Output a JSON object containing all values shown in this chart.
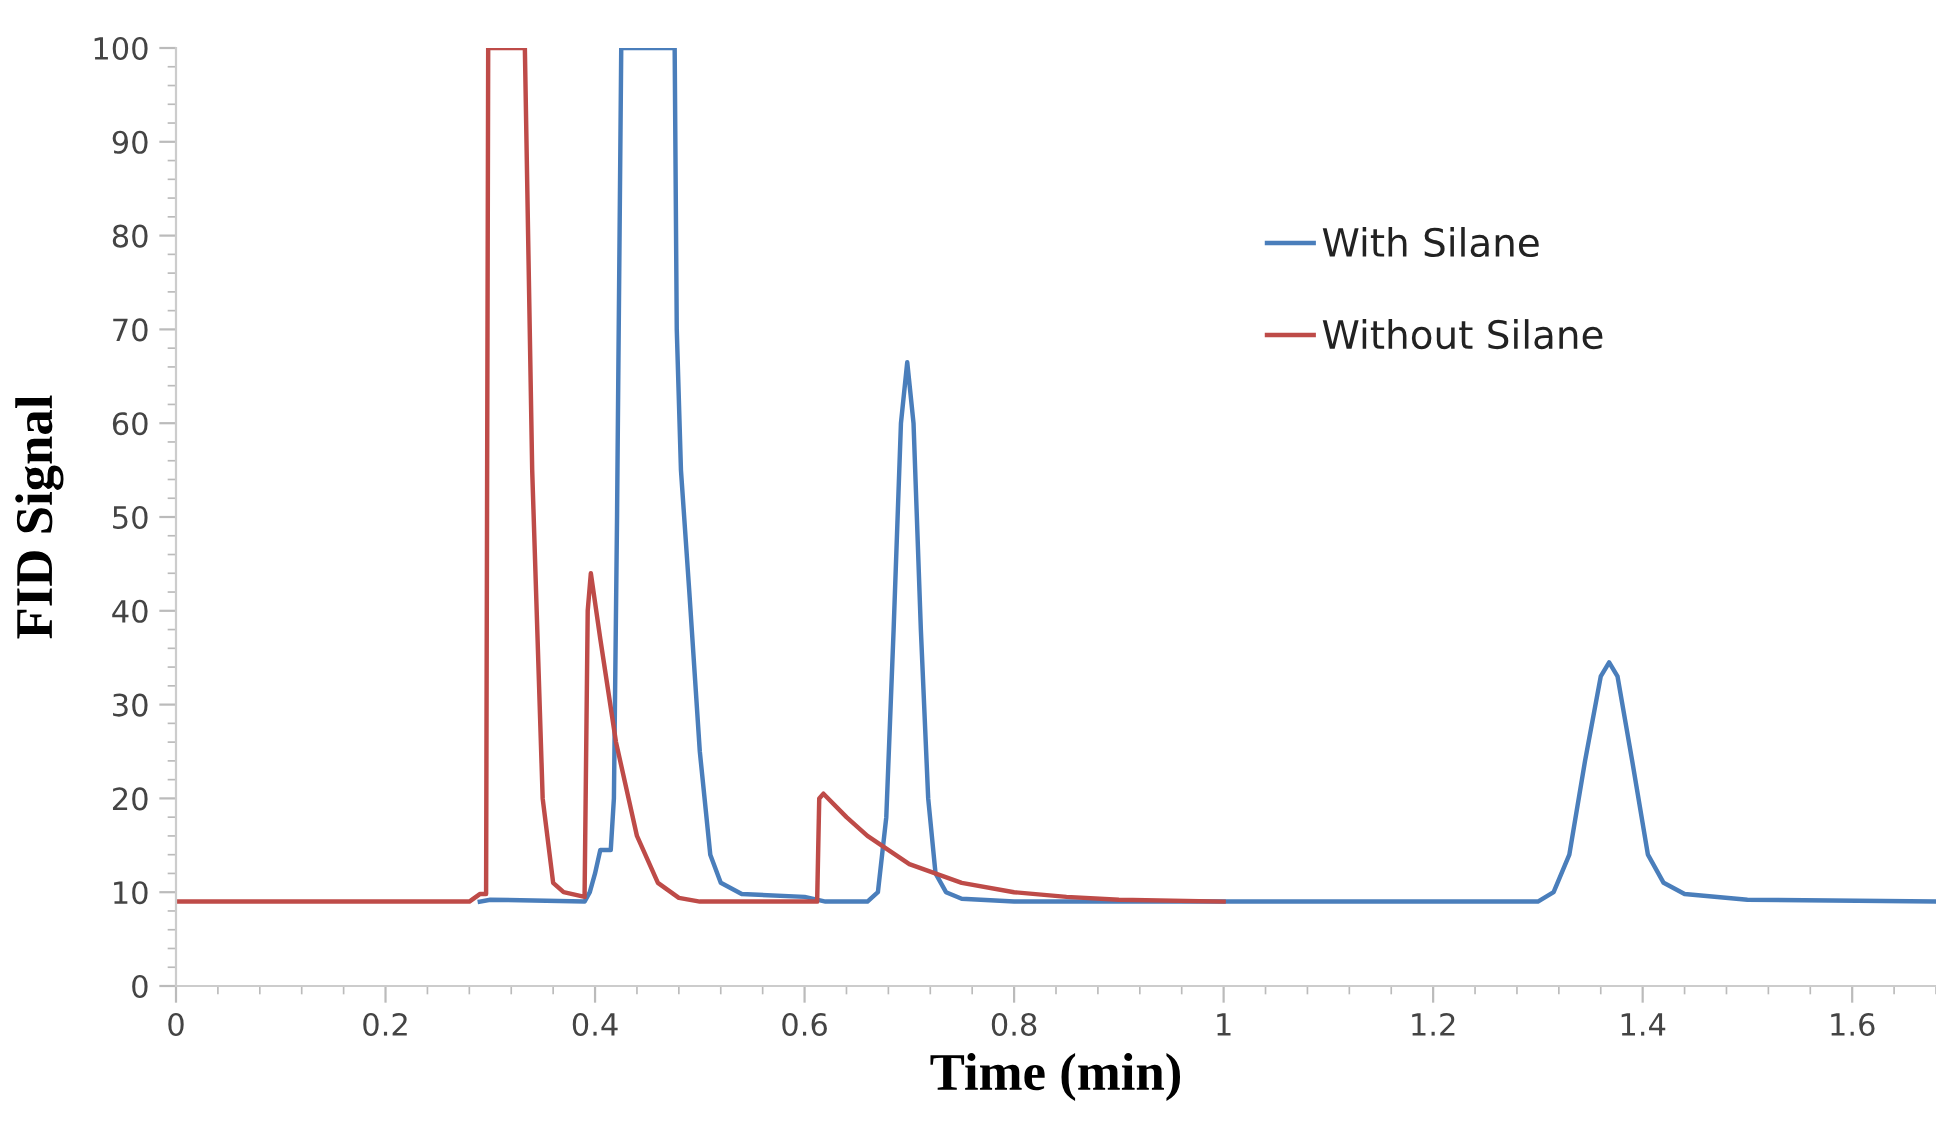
{
  "chart_data": {
    "type": "line",
    "xlabel": "Time (min)",
    "ylabel": "FID Signal",
    "xlim": [
      0,
      1.68
    ],
    "ylim": [
      0,
      100
    ],
    "xticks": [
      0,
      0.2,
      0.4,
      0.6,
      0.8,
      1,
      1.2,
      1.4,
      1.6
    ],
    "yticks": [
      0,
      10,
      20,
      30,
      40,
      50,
      60,
      70,
      80,
      90,
      100
    ],
    "grid": false,
    "legend": "right",
    "marker": "none",
    "line_style": "solid",
    "series": [
      {
        "name": "With Silane",
        "color": "#4a7ebb",
        "x": [
          0.29,
          0.3,
          0.39,
          0.395,
          0.4,
          0.405,
          0.415,
          0.418,
          0.421,
          0.425,
          0.476,
          0.478,
          0.482,
          0.49,
          0.5,
          0.51,
          0.52,
          0.54,
          0.6,
          0.62,
          0.66,
          0.67,
          0.678,
          0.685,
          0.692,
          0.698,
          0.704,
          0.711,
          0.718,
          0.725,
          0.735,
          0.75,
          0.8,
          1.3,
          1.315,
          1.33,
          1.345,
          1.36,
          1.368,
          1.376,
          1.39,
          1.405,
          1.42,
          1.44,
          1.5,
          1.68
        ],
        "values": [
          9,
          9.2,
          9,
          10,
          12,
          14.5,
          14.5,
          20,
          50,
          100,
          100,
          70,
          55,
          42,
          25,
          14,
          11,
          9.8,
          9.5,
          9,
          9,
          10,
          18,
          38,
          60,
          66.5,
          60,
          38,
          20,
          12,
          10,
          9.3,
          9,
          9,
          10,
          14,
          24,
          33,
          34.5,
          33,
          24,
          14,
          11,
          9.8,
          9.2,
          9
        ]
      },
      {
        "name": "Without Silane",
        "color": "#be4b48",
        "x": [
          0,
          0.28,
          0.29,
          0.296,
          0.298,
          0.333,
          0.34,
          0.35,
          0.36,
          0.37,
          0.39,
          0.393,
          0.396,
          0.405,
          0.42,
          0.44,
          0.46,
          0.48,
          0.5,
          0.612,
          0.614,
          0.618,
          0.64,
          0.66,
          0.7,
          0.75,
          0.8,
          0.85,
          0.9,
          1.0
        ],
        "values": [
          9,
          9,
          9.8,
          9.8,
          100,
          100,
          55,
          20,
          11,
          10,
          9.5,
          40,
          44,
          37,
          26,
          16,
          11,
          9.4,
          9,
          9,
          20,
          20.5,
          18,
          16,
          13,
          11,
          10,
          9.5,
          9.2,
          9
        ]
      }
    ]
  }
}
